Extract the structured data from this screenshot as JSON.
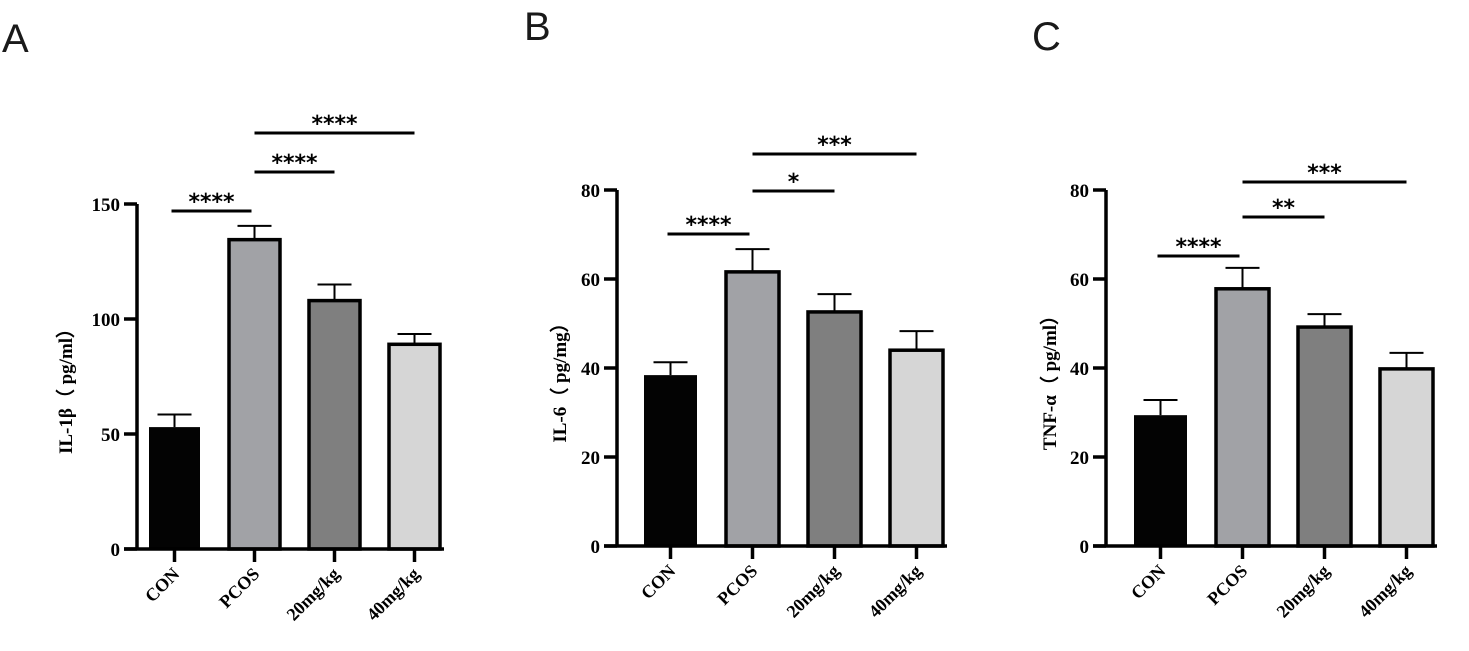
{
  "chart_data": [
    {
      "panel": "A",
      "type": "bar",
      "categories": [
        "CON",
        "PCOS",
        "20mg/kg",
        "40mg/kg"
      ],
      "values": [
        53,
        134.5,
        108,
        89
      ],
      "errors": [
        5.5,
        6,
        7,
        4.5
      ],
      "ylabel": "IL-1β（ pg/ml）",
      "ylim": [
        0,
        150
      ],
      "yticks": [
        "0",
        "50",
        "100",
        "150"
      ],
      "ytick_values": [
        0,
        50,
        100,
        150
      ],
      "significance": [
        {
          "from": 0,
          "to": 1,
          "label": "****",
          "level": 1
        },
        {
          "from": 1,
          "to": 2,
          "label": "****",
          "level": 2
        },
        {
          "from": 1,
          "to": 3,
          "label": "****",
          "level": 3
        }
      ]
    },
    {
      "panel": "B",
      "type": "bar",
      "categories": [
        "CON",
        "PCOS",
        "20mg/kg",
        "40mg/kg"
      ],
      "values": [
        38.4,
        61.6,
        52.6,
        44
      ],
      "errors": [
        2.9,
        5.1,
        4,
        4.3
      ],
      "ylabel": "IL-6（ pg/mg）",
      "ylim": [
        0,
        80
      ],
      "yticks": [
        "0",
        "20",
        "40",
        "60",
        "80"
      ],
      "ytick_values": [
        0,
        20,
        40,
        60,
        80
      ],
      "significance": [
        {
          "from": 0,
          "to": 1,
          "label": "****",
          "level": 1
        },
        {
          "from": 1,
          "to": 2,
          "label": "*",
          "level": 2
        },
        {
          "from": 1,
          "to": 3,
          "label": "***",
          "level": 3
        }
      ]
    },
    {
      "panel": "C",
      "type": "bar",
      "categories": [
        "CON",
        "PCOS",
        "20mg/kg",
        "40mg/kg"
      ],
      "values": [
        29.4,
        57.8,
        49.2,
        39.8
      ],
      "errors": [
        3.4,
        4.7,
        2.9,
        3.6
      ],
      "ylabel": "TNF-α（ pg/ml）",
      "ylim": [
        0,
        80
      ],
      "yticks": [
        "0",
        "20",
        "40",
        "60",
        "80"
      ],
      "ytick_values": [
        0,
        20,
        40,
        60,
        80
      ],
      "significance": [
        {
          "from": 0,
          "to": 1,
          "label": "****",
          "level": 1
        },
        {
          "from": 1,
          "to": 2,
          "label": "**",
          "level": 2
        },
        {
          "from": 1,
          "to": 3,
          "label": "***",
          "level": 3
        }
      ]
    }
  ],
  "colors": {
    "bars": [
      "#030303",
      "#a1a2a6",
      "#7f7f7f",
      "#d6d6d6"
    ],
    "outline": "#000000"
  }
}
